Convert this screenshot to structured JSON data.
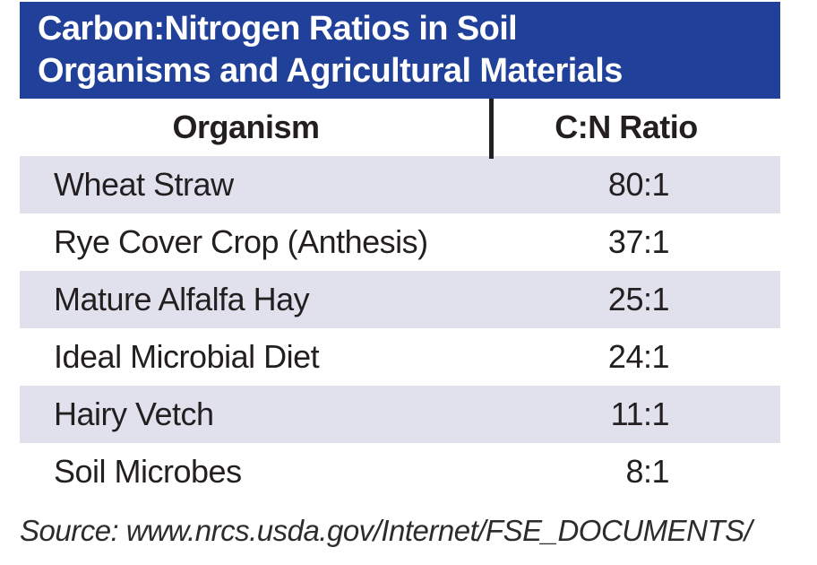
{
  "title": {
    "line1": "Carbon:Nitrogen Ratios in Soil",
    "line2": "Organisms and Agricultural Materials"
  },
  "header": {
    "organism_label": "Organism",
    "ratio_label": "C:N Ratio"
  },
  "rows": [
    {
      "organism": "Wheat Straw",
      "ratio": "80:1"
    },
    {
      "organism": "Rye Cover Crop (Anthesis)",
      "ratio": "37:1"
    },
    {
      "organism": "Mature Alfalfa Hay",
      "ratio": "25:1"
    },
    {
      "organism": "Ideal Microbial Diet",
      "ratio": "24:1"
    },
    {
      "organism": "Hairy Vetch",
      "ratio": "11:1"
    },
    {
      "organism": "Soil Microbes",
      "ratio": "8:1"
    }
  ],
  "source": "Source: www.nrcs.usda.gov/Internet/FSE_DOCUMENTS/",
  "colors": {
    "header_blue": "#21409A",
    "row_shade": "#E1E0ED",
    "text": "#231F20"
  },
  "chart_data": {
    "type": "table",
    "title": "Carbon:Nitrogen Ratios in Soil Organisms and Agricultural Materials",
    "columns": [
      "Organism",
      "C:N Ratio"
    ],
    "rows": [
      [
        "Wheat Straw",
        "80:1"
      ],
      [
        "Rye Cover Crop (Anthesis)",
        "37:1"
      ],
      [
        "Mature Alfalfa Hay",
        "25:1"
      ],
      [
        "Ideal Microbial Diet",
        "24:1"
      ],
      [
        "Hairy Vetch",
        "11:1"
      ],
      [
        "Soil Microbes",
        "8:1"
      ]
    ],
    "cn_ratios_numeric": [
      80,
      37,
      25,
      24,
      11,
      8
    ],
    "row_shading": "alternating, first row shaded lavender",
    "source": "Source: www.nrcs.usda.gov/Internet/FSE_DOCUMENTS/"
  }
}
